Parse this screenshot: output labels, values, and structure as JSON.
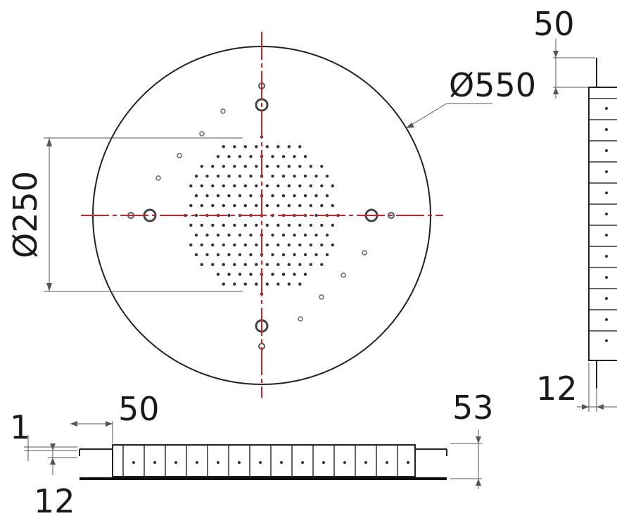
{
  "dimensions": {
    "outer_diameter": "Ø550",
    "pattern_diameter": "Ø250",
    "side_top_offset": "50",
    "side_bottom_offset": "12",
    "bottom_left_offset": "50",
    "bottom_total_height": "53",
    "bottom_thin_gap": "1",
    "bottom_lower_offset": "12"
  },
  "colors": {
    "centerline": "#d42020",
    "outline": "#222222",
    "dimension_line": "#555555"
  }
}
